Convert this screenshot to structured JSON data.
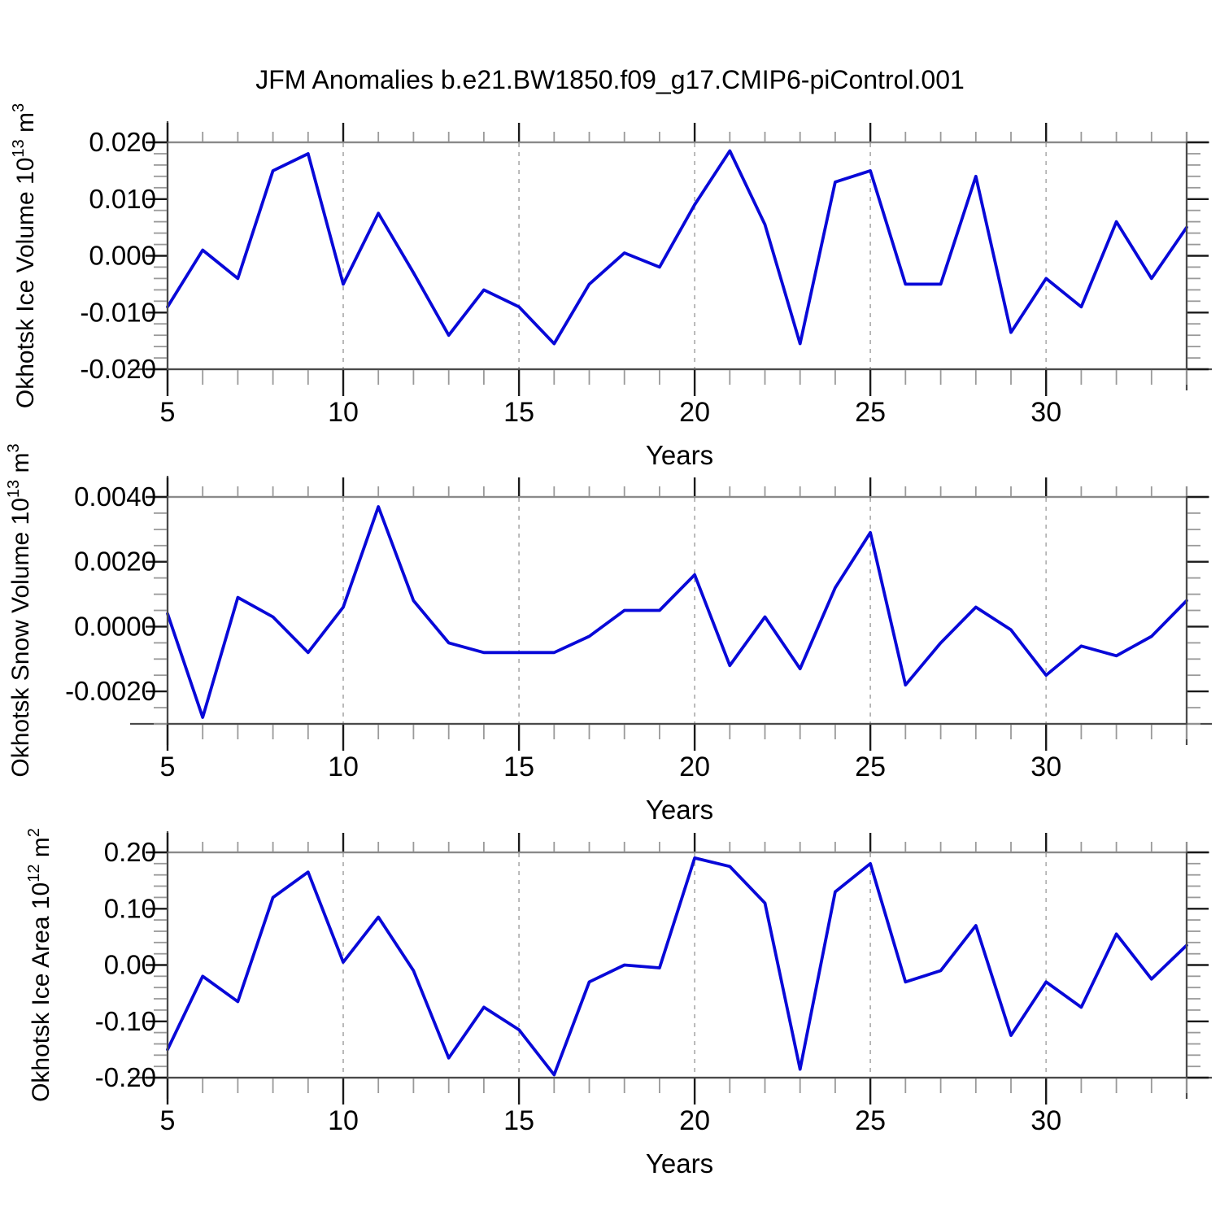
{
  "title": "JFM Anomalies b.e21.BW1850.f09_g17.CMIP6-piControl.001",
  "colors": {
    "line": "#0808d8",
    "frame": "#8a8a8a",
    "axis": "#4a4a4a",
    "major_tick": "#1a1a1a",
    "minor_tick": "#9a9a9a",
    "grid": "#b3b3b3",
    "text": "#000000",
    "background": "#ffffff"
  },
  "chart_data": [
    {
      "type": "line",
      "name": "okhotsk-ice-volume",
      "title": "",
      "ylabel": "Okhotsk Ice Volume 10^13 m^3",
      "ylabel_parts": [
        {
          "t": "Okhotsk Ice Volume 10"
        },
        {
          "sup": "13"
        },
        {
          "t": " m"
        },
        {
          "sup": "3"
        }
      ],
      "xlabel": "Years",
      "series_color": "#0808d8",
      "x": [
        5,
        6,
        7,
        8,
        9,
        10,
        11,
        12,
        13,
        14,
        15,
        16,
        17,
        18,
        19,
        20,
        21,
        22,
        23,
        24,
        25,
        26,
        27,
        28,
        29,
        30,
        31,
        32,
        33,
        34
      ],
      "values": [
        -0.009,
        0.001,
        -0.004,
        0.015,
        0.018,
        -0.005,
        0.0075,
        -0.003,
        -0.014,
        -0.006,
        -0.009,
        -0.0155,
        -0.005,
        0.0005,
        -0.002,
        0.009,
        0.0185,
        0.0055,
        -0.0155,
        0.013,
        0.015,
        -0.005,
        -0.005,
        0.014,
        -0.0135,
        -0.004,
        -0.009,
        0.006,
        -0.004,
        0.005
      ],
      "xlim": [
        5,
        34
      ],
      "ylim": [
        -0.02,
        0.02
      ],
      "yticks": [
        {
          "v": 0.02,
          "label": "0.020"
        },
        {
          "v": 0.01,
          "label": "0.010"
        },
        {
          "v": 0.0,
          "label": "0.000"
        },
        {
          "v": -0.01,
          "label": "-0.010"
        },
        {
          "v": -0.02,
          "label": "-0.020"
        }
      ],
      "yminor_step": 0.002,
      "xticks": [
        {
          "v": 5,
          "label": "5"
        },
        {
          "v": 10,
          "label": "10"
        },
        {
          "v": 15,
          "label": "15"
        },
        {
          "v": 20,
          "label": "20"
        },
        {
          "v": 25,
          "label": "25"
        },
        {
          "v": 30,
          "label": "30"
        }
      ],
      "xminor_step": 1,
      "grid_x": [
        10,
        15,
        20,
        25,
        30
      ],
      "grid": "vertical-dashed",
      "legend": "none"
    },
    {
      "type": "line",
      "name": "okhotsk-snow-volume",
      "title": "",
      "ylabel": "Okhotsk Snow Volume 10^13 m^3",
      "ylabel_parts": [
        {
          "t": "Okhotsk Snow Volume 10"
        },
        {
          "sup": "13"
        },
        {
          "t": " m"
        },
        {
          "sup": "3"
        }
      ],
      "xlabel": "Years",
      "series_color": "#0808d8",
      "x": [
        5,
        6,
        7,
        8,
        9,
        10,
        11,
        12,
        13,
        14,
        15,
        16,
        17,
        18,
        19,
        20,
        21,
        22,
        23,
        24,
        25,
        26,
        27,
        28,
        29,
        30,
        31,
        32,
        33,
        34
      ],
      "values": [
        0.0004,
        -0.0028,
        0.0009,
        0.0003,
        -0.0008,
        0.0006,
        0.0037,
        0.0008,
        -0.0005,
        -0.0008,
        -0.0008,
        -0.0008,
        -0.0003,
        0.0005,
        0.0005,
        0.0016,
        -0.0012,
        0.0003,
        -0.0013,
        0.0012,
        0.0029,
        -0.0018,
        -0.0005,
        0.0006,
        -0.0001,
        -0.0015,
        -0.0006,
        -0.0009,
        -0.0003,
        0.0008
      ],
      "xlim": [
        5,
        34
      ],
      "ylim": [
        -0.003,
        0.004
      ],
      "yticks": [
        {
          "v": 0.004,
          "label": "0.0040"
        },
        {
          "v": 0.002,
          "label": "0.0020"
        },
        {
          "v": 0.0,
          "label": "0.0000"
        },
        {
          "v": -0.002,
          "label": "-0.0020"
        }
      ],
      "yminor_step": 0.0005,
      "xticks": [
        {
          "v": 5,
          "label": "5"
        },
        {
          "v": 10,
          "label": "10"
        },
        {
          "v": 15,
          "label": "15"
        },
        {
          "v": 20,
          "label": "20"
        },
        {
          "v": 25,
          "label": "25"
        },
        {
          "v": 30,
          "label": "30"
        }
      ],
      "xminor_step": 1,
      "grid_x": [
        10,
        15,
        20,
        25,
        30
      ],
      "grid": "vertical-dashed",
      "legend": "none"
    },
    {
      "type": "line",
      "name": "okhotsk-ice-area",
      "title": "",
      "ylabel": "Okhotsk Ice Area 10^12 m^2",
      "ylabel_parts": [
        {
          "t": "Okhotsk Ice Area 10"
        },
        {
          "sup": "12"
        },
        {
          "t": " m"
        },
        {
          "sup": "2"
        }
      ],
      "xlabel": "Years",
      "series_color": "#0808d8",
      "x": [
        5,
        6,
        7,
        8,
        9,
        10,
        11,
        12,
        13,
        14,
        15,
        16,
        17,
        18,
        19,
        20,
        21,
        22,
        23,
        24,
        25,
        26,
        27,
        28,
        29,
        30,
        31,
        32,
        33,
        34
      ],
      "values": [
        -0.15,
        -0.02,
        -0.065,
        0.12,
        0.165,
        0.005,
        0.085,
        -0.01,
        -0.165,
        -0.075,
        -0.115,
        -0.195,
        -0.03,
        0.0,
        -0.005,
        0.19,
        0.175,
        0.11,
        -0.185,
        0.13,
        0.18,
        -0.03,
        -0.01,
        0.07,
        -0.125,
        -0.03,
        -0.075,
        0.055,
        -0.025,
        0.035
      ],
      "xlim": [
        5,
        34
      ],
      "ylim": [
        -0.2,
        0.2
      ],
      "yticks": [
        {
          "v": 0.2,
          "label": "0.20"
        },
        {
          "v": 0.1,
          "label": "0.10"
        },
        {
          "v": 0.0,
          "label": "0.00"
        },
        {
          "v": -0.1,
          "label": "-0.10"
        },
        {
          "v": -0.2,
          "label": "-0.20"
        }
      ],
      "yminor_step": 0.02,
      "xticks": [
        {
          "v": 5,
          "label": "5"
        },
        {
          "v": 10,
          "label": "10"
        },
        {
          "v": 15,
          "label": "15"
        },
        {
          "v": 20,
          "label": "20"
        },
        {
          "v": 25,
          "label": "25"
        },
        {
          "v": 30,
          "label": "30"
        }
      ],
      "xminor_step": 1,
      "grid_x": [
        10,
        15,
        20,
        25,
        30
      ],
      "grid": "vertical-dashed",
      "legend": "none"
    }
  ]
}
